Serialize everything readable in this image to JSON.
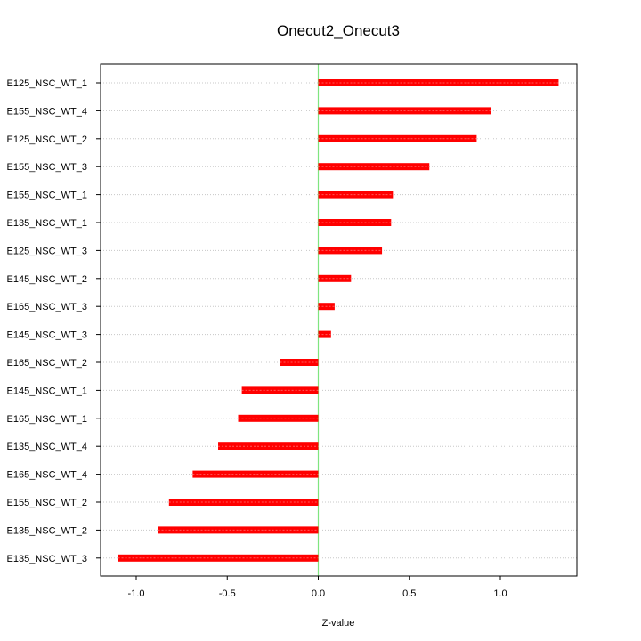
{
  "chart_data": {
    "type": "bar",
    "orientation": "horizontal",
    "title": "Onecut2_Onecut3",
    "xlabel": "Z-value",
    "ylabel": "",
    "xlim": [
      -1.2,
      1.43
    ],
    "xticks": [
      -1.0,
      -0.5,
      0.0,
      0.5,
      1.0
    ],
    "xtick_labels": [
      "-1.0",
      "-0.5",
      "0.0",
      "0.5",
      "1.0"
    ],
    "grid": true,
    "reference_line": {
      "x": 0,
      "color": "#7fe57f"
    },
    "bar_color": "#ff0000",
    "categories": [
      "E125_NSC_WT_1",
      "E155_NSC_WT_4",
      "E125_NSC_WT_2",
      "E155_NSC_WT_3",
      "E155_NSC_WT_1",
      "E135_NSC_WT_1",
      "E125_NSC_WT_3",
      "E145_NSC_WT_2",
      "E165_NSC_WT_3",
      "E145_NSC_WT_3",
      "E165_NSC_WT_2",
      "E145_NSC_WT_1",
      "E165_NSC_WT_1",
      "E135_NSC_WT_4",
      "E165_NSC_WT_4",
      "E155_NSC_WT_2",
      "E135_NSC_WT_2",
      "E135_NSC_WT_3"
    ],
    "values": [
      1.32,
      0.95,
      0.87,
      0.61,
      0.41,
      0.4,
      0.35,
      0.18,
      0.09,
      0.07,
      -0.21,
      -0.42,
      -0.44,
      -0.55,
      -0.69,
      -0.82,
      -0.88,
      -1.1
    ]
  }
}
